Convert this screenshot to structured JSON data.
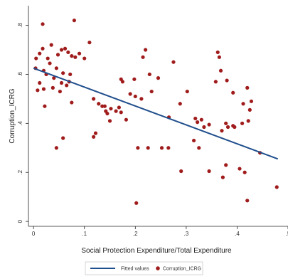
{
  "chart_data": {
    "type": "scatter",
    "xlabel": "Social Protection Expenditure/Total Expenditure",
    "ylabel": "Corruption_ICRG",
    "xlim": [
      -0.01,
      0.5
    ],
    "ylim": [
      -0.02,
      0.88
    ],
    "x_ticks": [
      {
        "value": 0,
        "label": "0"
      },
      {
        "value": 0.1,
        "label": ".1"
      },
      {
        "value": 0.2,
        "label": ".2"
      },
      {
        "value": 0.3,
        "label": ".3"
      },
      {
        "value": 0.4,
        "label": ".4"
      },
      {
        "value": 0.5,
        "label": ".5"
      }
    ],
    "y_ticks": [
      {
        "value": 0,
        "label": "0"
      },
      {
        "value": 0.2,
        "label": ".2"
      },
      {
        "value": 0.4,
        "label": ".4"
      },
      {
        "value": 0.6,
        "label": ".6"
      },
      {
        "value": 0.8,
        "label": ".8"
      }
    ],
    "grid": false,
    "legend_position": "bottom",
    "series": [
      {
        "name": "Fitted values",
        "kind": "line",
        "color": "#1f4e8c",
        "x": [
          0.0,
          0.48
        ],
        "y": [
          0.625,
          0.255
        ]
      },
      {
        "name": "Corruption_ICRG",
        "kind": "scatter",
        "color": "#a01c1c",
        "x": [
          0.018,
          0.08,
          0.005,
          0.012,
          0.018,
          0.028,
          0.035,
          0.048,
          0.055,
          0.062,
          0.068,
          0.075,
          0.082,
          0.09,
          0.1,
          0.11,
          0.02,
          0.032,
          0.045,
          0.058,
          0.072,
          0.004,
          0.012,
          0.025,
          0.04,
          0.055,
          0.07,
          0.008,
          0.02,
          0.038,
          0.052,
          0.065,
          0.022,
          0.075,
          0.058,
          0.045,
          0.118,
          0.122,
          0.135,
          0.14,
          0.145,
          0.118,
          0.128,
          0.142,
          0.152,
          0.162,
          0.172,
          0.182,
          0.15,
          0.168,
          0.172,
          0.198,
          0.215,
          0.22,
          0.212,
          0.228,
          0.175,
          0.19,
          0.2,
          0.245,
          0.232,
          0.275,
          0.266,
          0.288,
          0.302,
          0.318,
          0.322,
          0.33,
          0.335,
          0.345,
          0.362,
          0.365,
          0.368,
          0.358,
          0.38,
          0.392,
          0.395,
          0.41,
          0.422,
          0.425,
          0.428,
          0.42,
          0.412,
          0.37,
          0.378,
          0.392,
          0.382,
          0.445,
          0.478,
          0.378,
          0.405,
          0.29,
          0.325,
          0.415,
          0.252,
          0.205,
          0.225,
          0.265,
          0.315,
          0.345,
          0.202,
          0.372,
          0.42
        ],
        "y": [
          0.805,
          0.82,
          0.665,
          0.685,
          0.705,
          0.665,
          0.72,
          0.68,
          0.7,
          0.705,
          0.69,
          0.675,
          0.67,
          0.685,
          0.665,
          0.73,
          0.615,
          0.645,
          0.625,
          0.605,
          0.6,
          0.625,
          0.565,
          0.6,
          0.585,
          0.565,
          0.57,
          0.535,
          0.54,
          0.545,
          0.53,
          0.555,
          0.47,
          0.485,
          0.34,
          0.3,
          0.345,
          0.36,
          0.47,
          0.47,
          0.44,
          0.5,
          0.48,
          0.45,
          0.46,
          0.45,
          0.445,
          0.415,
          0.41,
          0.465,
          0.58,
          0.58,
          0.67,
          0.7,
          0.5,
          0.6,
          0.57,
          0.52,
          0.51,
          0.585,
          0.53,
          0.65,
          0.425,
          0.48,
          0.53,
          0.42,
          0.405,
          0.415,
          0.385,
          0.395,
          0.69,
          0.67,
          0.615,
          0.57,
          0.575,
          0.525,
          0.385,
          0.4,
          0.41,
          0.455,
          0.49,
          0.545,
          0.48,
          0.37,
          0.4,
          0.39,
          0.385,
          0.28,
          0.14,
          0.23,
          0.215,
          0.205,
          0.3,
          0.2,
          0.3,
          0.3,
          0.3,
          0.3,
          0.33,
          0.205,
          0.075,
          0.18,
          0.085
        ]
      }
    ]
  }
}
